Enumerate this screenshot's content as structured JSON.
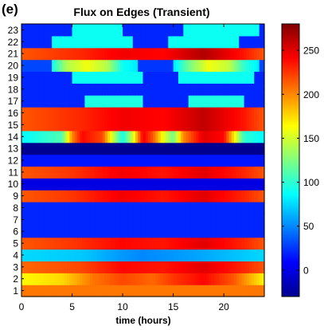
{
  "panel_label": "(e)",
  "chart_data": {
    "type": "heatmap",
    "title": "Flux on Edges (Transient)",
    "xlabel": "time (hours)",
    "ylabel": "",
    "xlim": [
      0,
      24
    ],
    "x_ticks": [
      0,
      5,
      10,
      15,
      20
    ],
    "y_categories": [
      "1",
      "2",
      "3",
      "4",
      "5",
      "6",
      "7",
      "8",
      "9",
      "10",
      "11",
      "12",
      "13",
      "14",
      "15",
      "16",
      "17",
      "18",
      "19",
      "20",
      "21",
      "22",
      "23"
    ],
    "colorbar": {
      "range": [
        -30,
        280
      ],
      "ticks": [
        0,
        50,
        100,
        150,
        200,
        250
      ],
      "colormap": "jet"
    },
    "rows": [
      {
        "edge": "1",
        "description": "constant high",
        "profile": [
          [
            0,
            205
          ],
          [
            24,
            205
          ]
        ]
      },
      {
        "edge": "2",
        "description": "high with peak around 17-20h",
        "profile": [
          [
            0,
            165
          ],
          [
            4,
            175
          ],
          [
            7,
            205
          ],
          [
            10,
            220
          ],
          [
            13,
            210
          ],
          [
            15,
            225
          ],
          [
            18,
            240
          ],
          [
            21,
            215
          ],
          [
            24,
            165
          ]
        ]
      },
      {
        "edge": "3",
        "description": "high with peak",
        "profile": [
          [
            0,
            210
          ],
          [
            6,
            220
          ],
          [
            10,
            240
          ],
          [
            14,
            235
          ],
          [
            18,
            250
          ],
          [
            22,
            230
          ],
          [
            24,
            215
          ]
        ]
      },
      {
        "edge": "4",
        "description": "moderate",
        "profile": [
          [
            0,
            75
          ],
          [
            6,
            70
          ],
          [
            10,
            55
          ],
          [
            12,
            50
          ],
          [
            15,
            55
          ],
          [
            18,
            60
          ],
          [
            24,
            75
          ]
        ]
      },
      {
        "edge": "5",
        "description": "high with peak",
        "profile": [
          [
            0,
            215
          ],
          [
            5,
            225
          ],
          [
            10,
            240
          ],
          [
            14,
            235
          ],
          [
            18,
            250
          ],
          [
            22,
            230
          ],
          [
            24,
            215
          ]
        ]
      },
      {
        "edge": "6",
        "description": "low",
        "profile": [
          [
            0,
            20
          ],
          [
            24,
            20
          ]
        ]
      },
      {
        "edge": "7",
        "description": "low",
        "profile": [
          [
            0,
            20
          ],
          [
            24,
            20
          ]
        ]
      },
      {
        "edge": "8",
        "description": "low",
        "profile": [
          [
            0,
            20
          ],
          [
            24,
            20
          ]
        ]
      },
      {
        "edge": "9",
        "description": "high with peak",
        "profile": [
          [
            0,
            215
          ],
          [
            5,
            225
          ],
          [
            10,
            245
          ],
          [
            14,
            235
          ],
          [
            18,
            250
          ],
          [
            22,
            230
          ],
          [
            24,
            215
          ]
        ]
      },
      {
        "edge": "10",
        "description": "very low",
        "profile": [
          [
            0,
            0
          ],
          [
            24,
            0
          ]
        ]
      },
      {
        "edge": "11",
        "description": "high with peak",
        "profile": [
          [
            0,
            215
          ],
          [
            5,
            225
          ],
          [
            10,
            245
          ],
          [
            14,
            235
          ],
          [
            18,
            250
          ],
          [
            22,
            230
          ],
          [
            24,
            215
          ]
        ]
      },
      {
        "edge": "12",
        "description": "low",
        "profile": [
          [
            0,
            15
          ],
          [
            24,
            15
          ]
        ]
      },
      {
        "edge": "13",
        "description": "lowest",
        "profile": [
          [
            0,
            -25
          ],
          [
            24,
            -25
          ]
        ]
      },
      {
        "edge": "14",
        "description": "alternating moderate / peaks",
        "profile": [
          [
            0,
            85
          ],
          [
            4,
            110
          ],
          [
            5,
            200
          ],
          [
            6,
            240
          ],
          [
            8,
            220
          ],
          [
            9,
            150
          ],
          [
            10,
            90
          ],
          [
            11,
            150
          ],
          [
            12,
            245
          ],
          [
            13,
            215
          ],
          [
            14,
            160
          ],
          [
            15,
            120
          ],
          [
            16,
            200
          ],
          [
            18,
            250
          ],
          [
            20,
            240
          ],
          [
            21,
            170
          ],
          [
            22,
            100
          ],
          [
            24,
            85
          ]
        ]
      },
      {
        "edge": "15",
        "description": "high with peak",
        "profile": [
          [
            0,
            215
          ],
          [
            6,
            230
          ],
          [
            10,
            245
          ],
          [
            14,
            240
          ],
          [
            18,
            260
          ],
          [
            22,
            235
          ],
          [
            24,
            215
          ]
        ]
      },
      {
        "edge": "16",
        "description": "high with peak",
        "profile": [
          [
            0,
            215
          ],
          [
            6,
            230
          ],
          [
            10,
            245
          ],
          [
            14,
            240
          ],
          [
            18,
            260
          ],
          [
            22,
            235
          ],
          [
            24,
            215
          ]
        ]
      },
      {
        "edge": "17",
        "description": "low with moderate blocks",
        "profile": [
          [
            0,
            20
          ],
          [
            6.2,
            20
          ],
          [
            6.3,
            95
          ],
          [
            11.9,
            95
          ],
          [
            12,
            20
          ],
          [
            16.5,
            20
          ],
          [
            16.6,
            95
          ],
          [
            21.9,
            95
          ],
          [
            22,
            20
          ],
          [
            24,
            20
          ]
        ]
      },
      {
        "edge": "18",
        "description": "low",
        "profile": [
          [
            0,
            20
          ],
          [
            24,
            20
          ]
        ]
      },
      {
        "edge": "19",
        "description": "low with moderate blocks",
        "profile": [
          [
            0,
            20
          ],
          [
            4.9,
            20
          ],
          [
            5,
            90
          ],
          [
            11.9,
            90
          ],
          [
            12,
            20
          ],
          [
            15.4,
            20
          ],
          [
            15.5,
            90
          ],
          [
            22.9,
            90
          ],
          [
            23,
            20
          ],
          [
            24,
            20
          ]
        ]
      },
      {
        "edge": "20",
        "description": "low with peaked blocks",
        "profile": [
          [
            0,
            30
          ],
          [
            2.9,
            30
          ],
          [
            3,
            90
          ],
          [
            4.5,
            140
          ],
          [
            6.5,
            160
          ],
          [
            8.5,
            140
          ],
          [
            10,
            90
          ],
          [
            11.4,
            80
          ],
          [
            11.5,
            25
          ],
          [
            15,
            25
          ],
          [
            15.1,
            80
          ],
          [
            16.5,
            120
          ],
          [
            18.5,
            160
          ],
          [
            20.5,
            145
          ],
          [
            22,
            100
          ],
          [
            23.5,
            80
          ],
          [
            23.6,
            30
          ],
          [
            24,
            30
          ]
        ]
      },
      {
        "edge": "21",
        "description": "high with peak",
        "profile": [
          [
            0,
            215
          ],
          [
            6,
            230
          ],
          [
            10,
            245
          ],
          [
            14,
            240
          ],
          [
            18,
            265
          ],
          [
            22,
            235
          ],
          [
            24,
            215
          ]
        ]
      },
      {
        "edge": "22",
        "description": "low with moderate blocks",
        "profile": [
          [
            0,
            20
          ],
          [
            2.9,
            20
          ],
          [
            3,
            90
          ],
          [
            10.9,
            90
          ],
          [
            11,
            20
          ],
          [
            14.4,
            20
          ],
          [
            14.5,
            90
          ],
          [
            21.4,
            90
          ],
          [
            21.5,
            20
          ],
          [
            24,
            20
          ]
        ]
      },
      {
        "edge": "23",
        "description": "low with moderate blocks",
        "profile": [
          [
            0,
            20
          ],
          [
            4.9,
            20
          ],
          [
            5,
            90
          ],
          [
            9.9,
            90
          ],
          [
            10,
            20
          ],
          [
            15.9,
            20
          ],
          [
            16,
            90
          ],
          [
            23.4,
            90
          ],
          [
            23.5,
            20
          ],
          [
            24,
            20
          ]
        ]
      }
    ]
  }
}
